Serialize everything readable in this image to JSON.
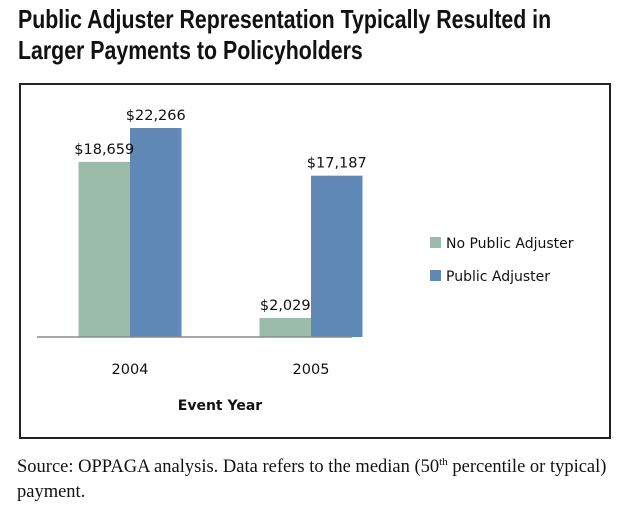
{
  "title_lines": [
    "Public Adjuster Representation Typically Resulted in",
    "Larger Payments to Policyholders"
  ],
  "chart_data": {
    "type": "bar",
    "title": "Public Adjuster Representation Typically Resulted in Larger Payments to Policyholders",
    "xlabel": "Event Year",
    "ylabel": "",
    "categories": [
      "2004",
      "2005"
    ],
    "series": [
      {
        "name": "No Public Adjuster",
        "color": "#9bbbab",
        "values": [
          18659,
          2029
        ],
        "labels": [
          "$18,659",
          "$2,029"
        ]
      },
      {
        "name": "Public Adjuster",
        "color": "#6189b8",
        "values": [
          22266,
          17187
        ],
        "labels": [
          "$22,266",
          "$17,187"
        ]
      }
    ],
    "ylim": [
      0,
      22266
    ],
    "grid": false,
    "legend": "right"
  },
  "source": {
    "prefix": "Source:  OPPAGA analysis.  Data refers to the median (50",
    "sup": "th",
    "suffix": " percentile or typical) payment."
  }
}
